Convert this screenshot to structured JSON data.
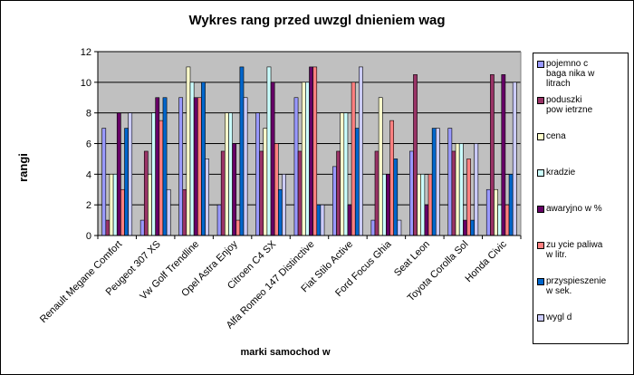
{
  "chart_data": {
    "type": "bar",
    "title": "Wykres rang przed uwzgl  dnieniem wag",
    "xlabel": "marki samochod  w",
    "ylabel": "rangi",
    "ylim": [
      0,
      12
    ],
    "yticks": [
      0,
      2,
      4,
      6,
      8,
      10,
      12
    ],
    "grid": true,
    "legend_position": "right",
    "categories": [
      "Renault Megane Comfort",
      "Peugeot 307 XS",
      "Vw Golf Trendline",
      "Opel Astra Enjoy",
      "Citroen C4 SX",
      "Alfa Romeo 147 Distinctive",
      "Fiat Stilo Active",
      "Ford Focus Ghia",
      "Seat Leon",
      "Toyota Corolla Sol",
      "Honda Civic"
    ],
    "series": [
      {
        "name": "pojemno  c\nbaga  nika w\nlitrach",
        "color": "#9999ff",
        "values": [
          7,
          1,
          9,
          2,
          8,
          9,
          4.5,
          1,
          5.5,
          7,
          3
        ]
      },
      {
        "name": "poduszki\npow ietrzne",
        "color": "#993366",
        "values": [
          1,
          5.5,
          3,
          5.5,
          5.5,
          5.5,
          5.5,
          5.5,
          10.5,
          5.5,
          10.5
        ]
      },
      {
        "name": "cena",
        "color": "#ffffcc",
        "values": [
          4,
          4,
          11,
          8,
          7,
          10,
          8,
          9,
          4,
          6,
          3
        ]
      },
      {
        "name": "kradzie",
        "color": "#ccffff",
        "values": [
          4,
          8,
          10,
          8,
          11,
          10,
          8,
          4,
          4,
          6,
          2
        ]
      },
      {
        "name": "awaryjno    w %",
        "color": "#660066",
        "values": [
          8,
          9,
          9,
          6,
          10,
          11,
          2,
          4,
          2,
          1,
          10.5
        ]
      },
      {
        "name": "zu  ycie paliwa\nw litr.",
        "color": "#ff8080",
        "values": [
          3,
          7.5,
          9,
          1,
          6,
          11,
          10,
          7.5,
          4,
          5,
          2
        ]
      },
      {
        "name": "przyspieszenie\nw sek.",
        "color": "#0066cc",
        "values": [
          7,
          9,
          10,
          11,
          3,
          2,
          7,
          5,
          7,
          1,
          4
        ]
      },
      {
        "name": "wygl  d",
        "color": "#ccccff",
        "values": [
          8,
          3,
          5,
          9,
          4,
          2,
          11,
          1,
          7,
          6,
          10
        ]
      }
    ]
  }
}
